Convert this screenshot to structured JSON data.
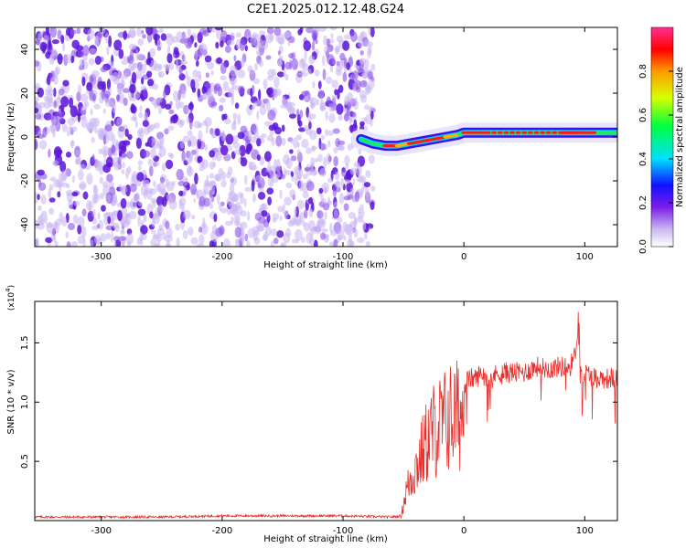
{
  "title": "C2E1.2025.012.12.48.G24",
  "colors": {
    "snr_line": "#e8302c",
    "background": "#ffffff",
    "noise_purple": "#6a1de0",
    "axis": "#000000"
  },
  "chart_data": [
    {
      "type": "heatmap",
      "title": "C2E1.2025.012.12.48.G24",
      "xlabel": "Height of straight line (km)",
      "ylabel": "Frequency (Hz)",
      "xlim": [
        -355,
        127
      ],
      "ylim": [
        -50,
        50
      ],
      "x_ticks": [
        -300,
        -200,
        -100,
        0,
        100
      ],
      "y_ticks": [
        -40,
        -20,
        0,
        20,
        40
      ],
      "colorbar": {
        "label": "Normalized spectral amplitude",
        "range": [
          0.0,
          1.0
        ],
        "ticks": [
          0.0,
          0.2,
          0.4,
          0.6,
          0.8
        ],
        "colormap": "rainbow (white-purple-blue-cyan-green-yellow-red-pink)"
      },
      "noise_region": {
        "x_range": [
          -355,
          -75
        ],
        "y_range": [
          -50,
          50
        ],
        "amplitude": [
          0.0,
          0.2
        ]
      },
      "signal_ridge": {
        "x": [
          -85,
          -75,
          -65,
          -55,
          -45,
          -35,
          -25,
          -15,
          -5,
          0,
          20,
          50,
          80,
          88,
          95,
          110,
          127
        ],
        "y": [
          -1,
          -3,
          -4,
          -4,
          -3,
          -2,
          -1,
          0,
          1,
          2,
          2,
          2,
          2,
          2,
          2,
          2,
          2
        ],
        "amplitude": [
          0.2,
          0.6,
          0.9,
          0.8,
          0.9,
          0.95,
          0.9,
          0.7,
          0.5,
          0.9,
          0.9,
          0.9,
          0.9,
          0.95,
          0.9,
          0.6,
          0.5
        ]
      },
      "grid": false
    },
    {
      "type": "line",
      "xlabel": "Height of straight line (km)",
      "ylabel": "SNR (10 * v/v)",
      "y_multiplier": "(x10^4)",
      "xlim": [
        -355,
        127
      ],
      "ylim": [
        0,
        1.85
      ],
      "x_ticks": [
        -300,
        -200,
        -100,
        0,
        100
      ],
      "y_ticks": [
        0.5,
        1.0,
        1.5
      ],
      "series": [
        {
          "x": [
            -355,
            -300,
            -250,
            -200,
            -150,
            -100,
            -60,
            -52,
            -48,
            -44,
            -40,
            -35,
            -30,
            -25,
            -20,
            -15,
            -10,
            -5,
            0,
            5,
            10,
            15,
            20,
            30,
            40,
            50,
            60,
            70,
            80,
            88,
            92,
            95,
            97,
            100,
            110,
            120,
            127
          ],
          "y": [
            0.03,
            0.03,
            0.03,
            0.04,
            0.04,
            0.04,
            0.03,
            0.04,
            0.3,
            0.45,
            0.55,
            0.7,
            0.85,
            0.95,
            1.0,
            1.05,
            1.1,
            1.1,
            1.15,
            1.2,
            1.2,
            1.25,
            1.2,
            1.25,
            1.25,
            1.25,
            1.3,
            1.28,
            1.3,
            1.3,
            1.4,
            1.75,
            1.15,
            1.25,
            1.2,
            1.2,
            1.2
          ]
        }
      ],
      "grid": false
    }
  ]
}
